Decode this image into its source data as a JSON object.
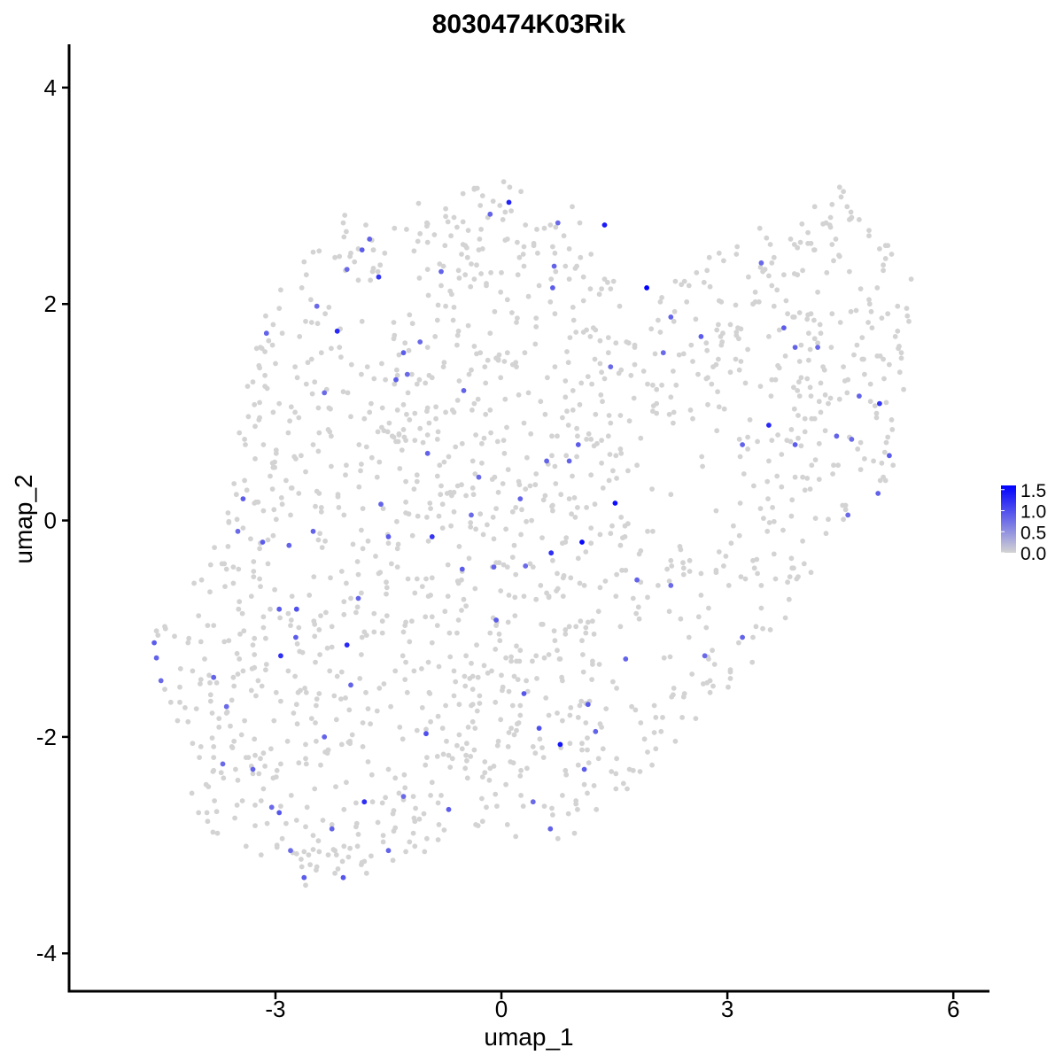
{
  "chart_data": {
    "type": "scatter",
    "title": "8030474K03Rik",
    "xlabel": "umap_1",
    "ylabel": "umap_2",
    "xlim": [
      -5.74,
      6.48
    ],
    "ylim": [
      -4.35,
      4.4
    ],
    "x_ticks": [
      {
        "value": -3,
        "label": "-3"
      },
      {
        "value": 0,
        "label": "0"
      },
      {
        "value": 3,
        "label": "3"
      },
      {
        "value": 6,
        "label": "6"
      }
    ],
    "y_ticks": [
      {
        "value": -4,
        "label": "-4"
      },
      {
        "value": -2,
        "label": "-2"
      },
      {
        "value": 0,
        "label": "0"
      },
      {
        "value": 2,
        "label": "2"
      },
      {
        "value": 4,
        "label": "4"
      }
    ],
    "grid": false,
    "legend_position": "right",
    "colors": {
      "low": "#d3d3d3",
      "high": "#0000ff"
    },
    "color_scale": {
      "min": 0.0,
      "max": 1.6,
      "labels": [
        {
          "value": 1.5,
          "label": "1.5"
        },
        {
          "value": 1.0,
          "label": "1.0"
        },
        {
          "value": 0.5,
          "label": "0.5"
        },
        {
          "value": 0.0,
          "label": "0.0"
        }
      ]
    },
    "highlighted_points": [
      {
        "x": 1.93,
        "y": 2.15,
        "value": 1.6
      },
      {
        "x": 1.07,
        "y": -0.2,
        "value": 1.55
      },
      {
        "x": 1.51,
        "y": 0.16,
        "value": 1.5
      },
      {
        "x": 0.78,
        "y": -2.07,
        "value": 1.45
      },
      {
        "x": 1.37,
        "y": 2.73,
        "value": 1.4
      },
      {
        "x": 0.1,
        "y": 2.94,
        "value": 1.35
      },
      {
        "x": -2.18,
        "y": 1.75,
        "value": 1.3
      },
      {
        "x": -2.05,
        "y": -1.15,
        "value": 1.3
      },
      {
        "x": 3.55,
        "y": 0.88,
        "value": 1.3
      },
      {
        "x": -1.82,
        "y": -2.6,
        "value": 1.25
      },
      {
        "x": -2.93,
        "y": -1.25,
        "value": 1.25
      },
      {
        "x": 0.66,
        "y": -0.3,
        "value": 1.25
      },
      {
        "x": -1.63,
        "y": 2.25,
        "value": 1.2
      },
      {
        "x": -0.92,
        "y": -0.15,
        "value": 1.2
      },
      {
        "x": 5.02,
        "y": 1.08,
        "value": 1.2
      },
      {
        "x": -4.61,
        "y": -1.13,
        "value": 0.9
      },
      {
        "x": -4.58,
        "y": -1.27,
        "value": 0.85
      },
      {
        "x": -4.52,
        "y": -1.48,
        "value": 0.8
      },
      {
        "x": -3.43,
        "y": 0.2,
        "value": 0.9
      },
      {
        "x": -3.5,
        "y": -0.1,
        "value": 0.8
      },
      {
        "x": -3.17,
        "y": -0.2,
        "value": 0.9
      },
      {
        "x": -2.82,
        "y": -0.23,
        "value": 0.85
      },
      {
        "x": -2.72,
        "y": -0.82,
        "value": 1.0
      },
      {
        "x": -2.95,
        "y": -0.82,
        "value": 0.9
      },
      {
        "x": -2.73,
        "y": -1.08,
        "value": 0.9
      },
      {
        "x": -2.5,
        "y": -0.1,
        "value": 0.85
      },
      {
        "x": -2.35,
        "y": 1.18,
        "value": 0.8
      },
      {
        "x": -2.05,
        "y": 2.32,
        "value": 0.8
      },
      {
        "x": -1.85,
        "y": 2.5,
        "value": 0.9
      },
      {
        "x": -1.75,
        "y": 2.6,
        "value": 0.85
      },
      {
        "x": -1.4,
        "y": 1.3,
        "value": 0.9
      },
      {
        "x": -1.3,
        "y": 1.55,
        "value": 0.9
      },
      {
        "x": -1.6,
        "y": 0.15,
        "value": 0.85
      },
      {
        "x": -1.5,
        "y": -0.15,
        "value": 0.9
      },
      {
        "x": -1.08,
        "y": 1.65,
        "value": 0.8
      },
      {
        "x": -0.8,
        "y": 2.3,
        "value": 0.85
      },
      {
        "x": -0.5,
        "y": 1.2,
        "value": 0.85
      },
      {
        "x": -0.3,
        "y": 0.4,
        "value": 0.8
      },
      {
        "x": -0.07,
        "y": -0.92,
        "value": 0.9
      },
      {
        "x": 0.3,
        "y": -1.6,
        "value": 0.95
      },
      {
        "x": 0.5,
        "y": -1.92,
        "value": 1.0
      },
      {
        "x": 0.7,
        "y": 2.35,
        "value": 0.85
      },
      {
        "x": 0.68,
        "y": 2.15,
        "value": 0.9
      },
      {
        "x": 0.6,
        "y": 0.55,
        "value": 0.85
      },
      {
        "x": 1.15,
        "y": -1.7,
        "value": 0.9
      },
      {
        "x": 1.25,
        "y": -1.95,
        "value": 0.85
      },
      {
        "x": 1.1,
        "y": -2.3,
        "value": 0.9
      },
      {
        "x": -0.7,
        "y": -2.67,
        "value": 0.9
      },
      {
        "x": -1.0,
        "y": -1.97,
        "value": 1.0
      },
      {
        "x": -2.95,
        "y": -2.7,
        "value": 0.95
      },
      {
        "x": -2.62,
        "y": -3.3,
        "value": 0.9
      },
      {
        "x": -2.1,
        "y": -3.3,
        "value": 0.95
      },
      {
        "x": -1.5,
        "y": -3.05,
        "value": 0.85
      },
      {
        "x": 0.65,
        "y": -2.85,
        "value": 0.85
      },
      {
        "x": 0.42,
        "y": -2.6,
        "value": 0.8
      },
      {
        "x": 2.7,
        "y": -1.25,
        "value": 0.8
      },
      {
        "x": 2.25,
        "y": -0.6,
        "value": 0.8
      },
      {
        "x": 3.2,
        "y": 0.7,
        "value": 0.85
      },
      {
        "x": 3.9,
        "y": 0.7,
        "value": 0.9
      },
      {
        "x": 4.45,
        "y": 0.78,
        "value": 0.85
      },
      {
        "x": 4.75,
        "y": 1.15,
        "value": 0.85
      },
      {
        "x": 4.65,
        "y": 0.75,
        "value": 0.8
      },
      {
        "x": 4.2,
        "y": 1.6,
        "value": 0.8
      },
      {
        "x": 3.45,
        "y": 2.38,
        "value": 0.8
      },
      {
        "x": 2.65,
        "y": 1.7,
        "value": 0.9
      },
      {
        "x": 2.25,
        "y": 1.88,
        "value": 0.85
      },
      {
        "x": 2.15,
        "y": 1.55,
        "value": 0.8
      },
      {
        "x": 1.45,
        "y": 1.42,
        "value": 0.8
      },
      {
        "x": 1.02,
        "y": 0.7,
        "value": 0.9
      },
      {
        "x": 0.9,
        "y": 0.55,
        "value": 0.85
      },
      {
        "x": 0.25,
        "y": 0.2,
        "value": 0.85
      },
      {
        "x": 0.32,
        "y": -0.42,
        "value": 0.8
      },
      {
        "x": -0.4,
        "y": 0.05,
        "value": 0.8
      },
      {
        "x": -0.52,
        "y": -0.45,
        "value": 0.9
      },
      {
        "x": -1.9,
        "y": -0.72,
        "value": 0.85
      },
      {
        "x": -2.0,
        "y": -1.52,
        "value": 0.85
      },
      {
        "x": -2.35,
        "y": -2.0,
        "value": 0.85
      },
      {
        "x": -3.3,
        "y": -2.3,
        "value": 0.85
      },
      {
        "x": -3.7,
        "y": -2.25,
        "value": 0.8
      },
      {
        "x": -3.82,
        "y": -1.45,
        "value": 0.85
      },
      {
        "x": -3.65,
        "y": -1.72,
        "value": 0.8
      },
      {
        "x": -3.12,
        "y": 1.73,
        "value": 0.85
      },
      {
        "x": -2.45,
        "y": 1.98,
        "value": 0.8
      },
      {
        "x": -0.15,
        "y": 2.83,
        "value": 0.85
      },
      {
        "x": 0.75,
        "y": 2.75,
        "value": 0.8
      },
      {
        "x": 1.8,
        "y": -0.55,
        "value": 0.85
      },
      {
        "x": 1.65,
        "y": -1.28,
        "value": 0.85
      },
      {
        "x": 3.2,
        "y": -1.08,
        "value": 0.85
      },
      {
        "x": 4.6,
        "y": 0.05,
        "value": 0.8
      },
      {
        "x": 5.0,
        "y": 0.25,
        "value": 0.85
      },
      {
        "x": 5.15,
        "y": 0.6,
        "value": 0.9
      },
      {
        "x": 3.9,
        "y": 1.6,
        "value": 0.85
      },
      {
        "x": 3.75,
        "y": 1.78,
        "value": 0.9
      },
      {
        "x": -0.98,
        "y": 0.62,
        "value": 0.85
      },
      {
        "x": -1.25,
        "y": 1.35,
        "value": 0.8
      },
      {
        "x": -0.1,
        "y": -0.43,
        "value": 0.85
      },
      {
        "x": -1.3,
        "y": -2.55,
        "value": 0.8
      },
      {
        "x": -2.25,
        "y": -2.85,
        "value": 0.85
      },
      {
        "x": -2.8,
        "y": -3.05,
        "value": 0.8
      },
      {
        "x": -3.05,
        "y": -2.65,
        "value": 0.8
      }
    ],
    "background_points": []
  }
}
